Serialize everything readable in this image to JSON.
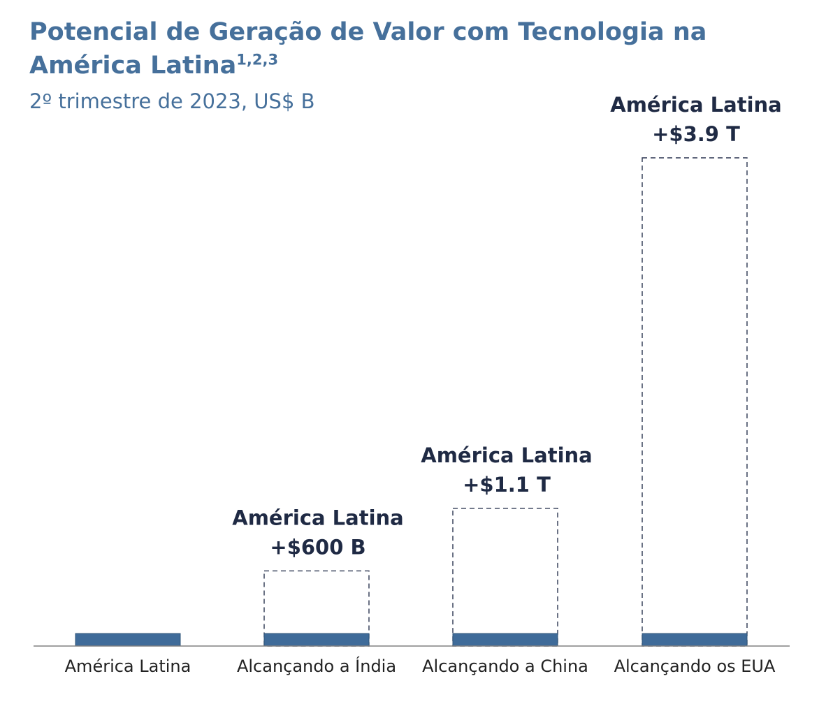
{
  "title": {
    "main": "Potencial de Geração de Valor com Tecnologia na América Latina",
    "superscript": "1,2,3"
  },
  "subtitle": "2º trimestre de 2023, US$ B",
  "colors": {
    "title": "#46709b",
    "base_bar": "#3f6b99",
    "base_bar_outline": "#2f5478",
    "potential_outline": "#2b3550",
    "annotation": "#1f2a44",
    "axis": "#808080",
    "tick_label": "#222222"
  },
  "chart_data": {
    "type": "bar",
    "title": "Potencial de Geração de Valor com Tecnologia na América Latina",
    "subtitle": "2º trimestre de 2023, US$ B",
    "categories": [
      "América Latina",
      "Alcançando a Índia",
      "Alcançando a China",
      "Alcançando os EUA"
    ],
    "series": [
      {
        "name": "",
        "style": "solid",
        "values": [
          100,
          100,
          100,
          100
        ]
      },
      {
        "name": "",
        "style": "dashed-outline",
        "values": [
          null,
          600,
          1100,
          3900
        ]
      }
    ],
    "annotations": [
      null,
      {
        "line1": "América Latina",
        "line2": "+$600 B"
      },
      {
        "line1": "América Latina",
        "line2": "+$1.1 T"
      },
      {
        "line1": "América Latina",
        "line2": "+$3.9 T"
      }
    ],
    "ylim": [
      0,
      3900
    ],
    "xlabel": "",
    "ylabel": "",
    "grid": false,
    "legend": "none"
  }
}
